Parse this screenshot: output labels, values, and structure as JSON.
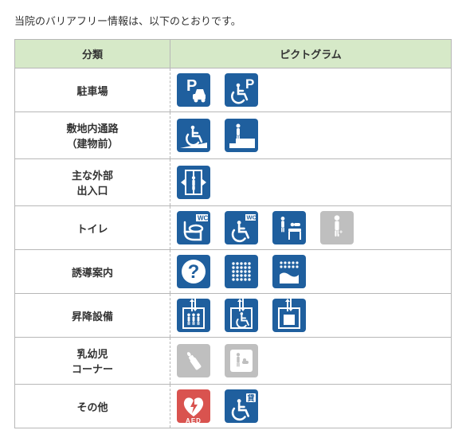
{
  "intro_text": "当院のバリアフリー情報は、以下のとおりです。",
  "headers": {
    "category": "分類",
    "pictogram": "ピクトグラム"
  },
  "colors": {
    "primary": "#1f5f9e",
    "gray": "#bfbfbf",
    "white": "#ffffff",
    "aed_red": "#d9534f",
    "header_bg": "#d6e9c8",
    "border": "#b7b7b7"
  },
  "rows": [
    {
      "label_lines": [
        "駐車場"
      ],
      "icons": [
        {
          "name": "parking-icon",
          "color": "primary"
        },
        {
          "name": "wheelchair-parking-icon",
          "color": "primary"
        }
      ]
    },
    {
      "label_lines": [
        "敷地内通路",
        "（建物前）"
      ],
      "icons": [
        {
          "name": "wheelchair-ramp-icon",
          "color": "primary"
        },
        {
          "name": "staircase-person-icon",
          "color": "primary"
        }
      ]
    },
    {
      "label_lines": [
        "主な外部",
        "出入口"
      ],
      "icons": [
        {
          "name": "auto-door-icon",
          "color": "primary"
        }
      ]
    },
    {
      "label_lines": [
        "トイレ"
      ],
      "icons": [
        {
          "name": "toilet-wc-icon",
          "color": "primary",
          "tag": "WC"
        },
        {
          "name": "wheelchair-wc-icon",
          "color": "primary",
          "tag": "WC"
        },
        {
          "name": "baby-change-icon",
          "color": "primary"
        },
        {
          "name": "ostomate-icon",
          "color": "gray"
        }
      ]
    },
    {
      "label_lines": [
        "誘導案内"
      ],
      "icons": [
        {
          "name": "info-question-icon",
          "color": "primary"
        },
        {
          "name": "tactile-block-icon",
          "color": "primary"
        },
        {
          "name": "braille-band-icon",
          "color": "primary"
        }
      ]
    },
    {
      "label_lines": [
        "昇降設備"
      ],
      "icons": [
        {
          "name": "elevator-icon",
          "color": "primary"
        },
        {
          "name": "wheelchair-elevator-icon",
          "color": "primary"
        },
        {
          "name": "elevator-box-icon",
          "color": "primary"
        }
      ]
    },
    {
      "label_lines": [
        "乳幼児",
        "コーナー"
      ],
      "icons": [
        {
          "name": "baby-bottle-icon",
          "color": "gray"
        },
        {
          "name": "nursing-icon",
          "color": "gray"
        }
      ]
    },
    {
      "label_lines": [
        "その他"
      ],
      "icons": [
        {
          "name": "aed-icon",
          "color": "aed_red",
          "caption": "AED"
        },
        {
          "name": "wheelchair-loan-icon",
          "color": "primary",
          "tag": "貸"
        }
      ]
    }
  ]
}
